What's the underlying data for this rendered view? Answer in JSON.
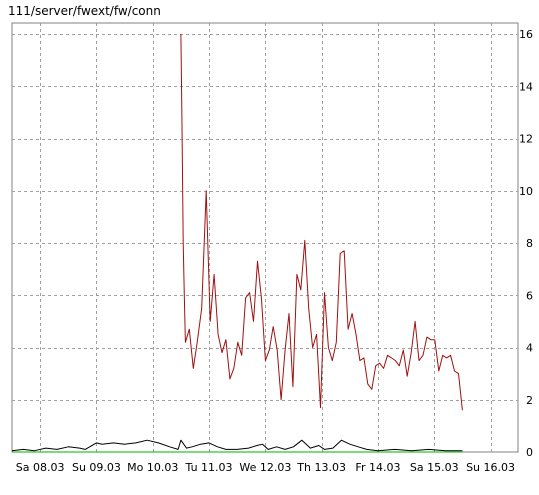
{
  "title": "111/server/fwext/fw/conn",
  "colors": {
    "background": "#ffffff",
    "grid": "#a0a0a0",
    "series_red": "#a01010",
    "series_black": "#000000",
    "series_green": "#00b000"
  },
  "chart_data": {
    "type": "line",
    "title": "111/server/fwext/fw/conn",
    "xlabel": "",
    "ylabel": "",
    "xlim": [
      0,
      9
    ],
    "ylim": [
      0,
      16.5
    ],
    "grid": true,
    "y_axis_side": "right",
    "x_ticks": [
      {
        "value": 0.5,
        "label": "Sa 08.03"
      },
      {
        "value": 1.5,
        "label": "Su 09.03"
      },
      {
        "value": 2.5,
        "label": "Mo 10.03"
      },
      {
        "value": 3.5,
        "label": "Tu 11.03"
      },
      {
        "value": 4.5,
        "label": "We 12.03"
      },
      {
        "value": 5.5,
        "label": "Th 13.03"
      },
      {
        "value": 6.5,
        "label": "Fr 14.03"
      },
      {
        "value": 7.5,
        "label": "Sa 15.03"
      },
      {
        "value": 8.5,
        "label": "Su 16.03"
      }
    ],
    "y_ticks": [
      0,
      2,
      4,
      6,
      8,
      10,
      12,
      14,
      16
    ],
    "series": [
      {
        "color": "#a01010",
        "points": [
          [
            3.0,
            16.0
          ],
          [
            3.02,
            12.5
          ],
          [
            3.04,
            8.0
          ],
          [
            3.06,
            6.0
          ],
          [
            3.08,
            4.2
          ],
          [
            3.15,
            4.7
          ],
          [
            3.22,
            3.2
          ],
          [
            3.29,
            4.2
          ],
          [
            3.37,
            5.5
          ],
          [
            3.45,
            10.0
          ],
          [
            3.52,
            5.0
          ],
          [
            3.59,
            6.8
          ],
          [
            3.66,
            4.5
          ],
          [
            3.73,
            3.8
          ],
          [
            3.8,
            4.3
          ],
          [
            3.87,
            2.8
          ],
          [
            3.94,
            3.2
          ],
          [
            4.01,
            4.2
          ],
          [
            4.08,
            3.7
          ],
          [
            4.15,
            5.9
          ],
          [
            4.22,
            6.1
          ],
          [
            4.29,
            5.0
          ],
          [
            4.36,
            7.3
          ],
          [
            4.43,
            5.9
          ],
          [
            4.5,
            3.5
          ],
          [
            4.57,
            3.9
          ],
          [
            4.64,
            4.8
          ],
          [
            4.71,
            3.9
          ],
          [
            4.78,
            2.0
          ],
          [
            4.85,
            3.9
          ],
          [
            4.92,
            5.3
          ],
          [
            4.99,
            2.5
          ],
          [
            5.06,
            6.8
          ],
          [
            5.13,
            6.2
          ],
          [
            5.2,
            8.1
          ],
          [
            5.27,
            5.5
          ],
          [
            5.34,
            4.0
          ],
          [
            5.41,
            4.5
          ],
          [
            5.48,
            1.7
          ],
          [
            5.55,
            6.1
          ],
          [
            5.62,
            4.0
          ],
          [
            5.69,
            3.5
          ],
          [
            5.76,
            4.2
          ],
          [
            5.83,
            7.6
          ],
          [
            5.9,
            7.7
          ],
          [
            5.97,
            4.7
          ],
          [
            6.04,
            5.3
          ],
          [
            6.11,
            4.5
          ],
          [
            6.18,
            3.5
          ],
          [
            6.25,
            3.6
          ],
          [
            6.32,
            2.6
          ],
          [
            6.39,
            2.4
          ],
          [
            6.46,
            3.3
          ],
          [
            6.53,
            3.4
          ],
          [
            6.6,
            3.2
          ],
          [
            6.67,
            3.7
          ],
          [
            6.74,
            3.6
          ],
          [
            6.81,
            3.5
          ],
          [
            6.88,
            3.3
          ],
          [
            6.95,
            3.9
          ],
          [
            7.02,
            2.9
          ],
          [
            7.09,
            3.8
          ],
          [
            7.16,
            5.0
          ],
          [
            7.23,
            3.5
          ],
          [
            7.3,
            3.7
          ],
          [
            7.37,
            4.4
          ],
          [
            7.44,
            4.3
          ],
          [
            7.51,
            4.3
          ],
          [
            7.58,
            3.1
          ],
          [
            7.65,
            3.7
          ],
          [
            7.72,
            3.6
          ],
          [
            7.79,
            3.7
          ],
          [
            7.86,
            3.1
          ],
          [
            7.93,
            3.0
          ],
          [
            8.0,
            1.6
          ]
        ]
      },
      {
        "color": "#000000",
        "points": [
          [
            0.0,
            0.05
          ],
          [
            0.2,
            0.1
          ],
          [
            0.4,
            0.05
          ],
          [
            0.6,
            0.15
          ],
          [
            0.8,
            0.1
          ],
          [
            1.0,
            0.2
          ],
          [
            1.2,
            0.15
          ],
          [
            1.3,
            0.1
          ],
          [
            1.5,
            0.35
          ],
          [
            1.6,
            0.3
          ],
          [
            1.8,
            0.35
          ],
          [
            2.0,
            0.3
          ],
          [
            2.2,
            0.35
          ],
          [
            2.4,
            0.45
          ],
          [
            2.6,
            0.35
          ],
          [
            2.8,
            0.2
          ],
          [
            2.95,
            0.1
          ],
          [
            3.0,
            0.45
          ],
          [
            3.1,
            0.15
          ],
          [
            3.2,
            0.2
          ],
          [
            3.35,
            0.3
          ],
          [
            3.5,
            0.35
          ],
          [
            3.65,
            0.2
          ],
          [
            3.8,
            0.1
          ],
          [
            4.0,
            0.1
          ],
          [
            4.2,
            0.15
          ],
          [
            4.35,
            0.25
          ],
          [
            4.45,
            0.3
          ],
          [
            4.55,
            0.1
          ],
          [
            4.7,
            0.2
          ],
          [
            4.85,
            0.1
          ],
          [
            5.0,
            0.2
          ],
          [
            5.15,
            0.45
          ],
          [
            5.3,
            0.15
          ],
          [
            5.45,
            0.25
          ],
          [
            5.55,
            0.1
          ],
          [
            5.7,
            0.15
          ],
          [
            5.85,
            0.45
          ],
          [
            6.0,
            0.3
          ],
          [
            6.15,
            0.2
          ],
          [
            6.3,
            0.1
          ],
          [
            6.5,
            0.05
          ],
          [
            6.8,
            0.1
          ],
          [
            7.1,
            0.05
          ],
          [
            7.4,
            0.1
          ],
          [
            7.7,
            0.05
          ],
          [
            8.0,
            0.05
          ]
        ]
      },
      {
        "color": "#00b000",
        "points": [
          [
            0.0,
            0.0
          ],
          [
            8.0,
            0.0
          ]
        ]
      }
    ]
  }
}
